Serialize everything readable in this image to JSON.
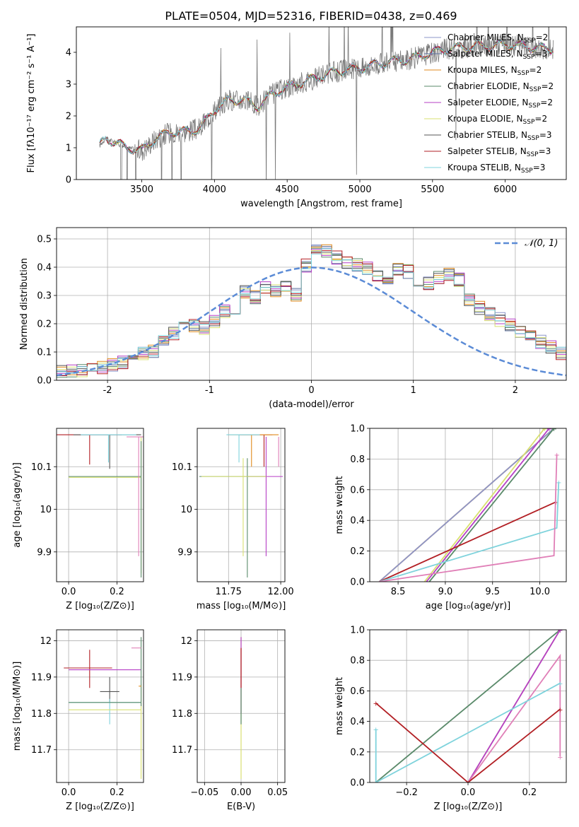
{
  "figure_title": "PLATE=0504, MJD=52316, FIBERID=0438, z=0.469",
  "colors": {
    "Chabrier MILES": "#8c95c9",
    "Salpeter MILES": "#5b6f9e",
    "Kroupa MILES": "#e08a1c",
    "Chabrier ELODIE": "#5a8a6a",
    "Salpeter ELODIE": "#b63fc6",
    "Kroupa ELODIE": "#d8e070",
    "Chabrier STELIB": "#555555",
    "Salpeter STELIB": "#b21f24",
    "Kroupa STELIB": "#7fd3dc",
    "normal": "#5b8bd6",
    "observed": "#7a7a7a",
    "extra_pink": "#e07fb7",
    "extra_grey": "#505050"
  },
  "legend_spectrum": [
    {
      "label": "Chabrier MILES, N",
      "sub": "SSP",
      "suffix": "=2"
    },
    {
      "label": "Salpeter MILES, N",
      "sub": "SSP",
      "suffix": "=3"
    },
    {
      "label": "Kroupa MILES, N",
      "sub": "SSP",
      "suffix": "=2"
    },
    {
      "label": "Chabrier ELODIE, N",
      "sub": "SSP",
      "suffix": "=2"
    },
    {
      "label": "Salpeter ELODIE, N",
      "sub": "SSP",
      "suffix": "=2"
    },
    {
      "label": "Kroupa ELODIE, N",
      "sub": "SSP",
      "suffix": "=2"
    },
    {
      "label": "Chabrier STELIB, N",
      "sub": "SSP",
      "suffix": "=3"
    },
    {
      "label": "Salpeter STELIB, N",
      "sub": "SSP",
      "suffix": "=3"
    },
    {
      "label": "Kroupa STELIB, N",
      "sub": "SSP",
      "suffix": "=3"
    }
  ],
  "chart_data": [
    {
      "id": "spectrum",
      "type": "line",
      "xlabel": "wavelength [Angstrom, rest frame]",
      "ylabel": "Flux [fλ10⁻¹⁷ erg cm⁻² s⁻¹ A⁻¹]",
      "xlim": [
        3050,
        6420
      ],
      "ylim": [
        0,
        4.8
      ],
      "xticks": [
        3500,
        4000,
        4500,
        5000,
        5500,
        6000
      ],
      "yticks": [
        0,
        1,
        2,
        3,
        4
      ],
      "continuum": {
        "x": [
          3200,
          3250,
          3300,
          3400,
          3500,
          3600,
          3700,
          3800,
          3900,
          4000,
          4100,
          4200,
          4300,
          4400,
          4500,
          4600,
          4700,
          4800,
          4900,
          5000,
          5100,
          5200,
          5300,
          5400,
          5500,
          5600,
          5700,
          5800,
          5900,
          6000,
          6100,
          6200,
          6300
        ],
        "y": [
          1.0,
          1.3,
          1.2,
          1.0,
          0.9,
          1.3,
          1.5,
          1.5,
          1.6,
          2.2,
          2.5,
          2.5,
          2.3,
          2.7,
          2.9,
          3.05,
          3.2,
          3.35,
          3.45,
          3.5,
          3.6,
          3.7,
          3.75,
          3.85,
          4.0,
          4.1,
          4.15,
          4.2,
          4.2,
          4.25,
          4.2,
          4.15,
          4.1
        ]
      }
    },
    {
      "id": "residuals",
      "type": "histogram",
      "xlabel": "(data-model)/error",
      "ylabel": "Normed distribution",
      "xlim": [
        -2.5,
        2.5
      ],
      "ylim": [
        0,
        0.54
      ],
      "xticks": [
        -2,
        -1,
        0,
        1,
        2
      ],
      "yticks": [
        0.0,
        0.1,
        0.2,
        0.3,
        0.4,
        0.5
      ],
      "legend": "𝒩(0, 1)",
      "bin_edges_start": -2.5,
      "bin_width": 0.1,
      "histogram_values": [
        0.02,
        0.02,
        0.02,
        0.03,
        0.03,
        0.04,
        0.05,
        0.06,
        0.08,
        0.09,
        0.12,
        0.15,
        0.17,
        0.18,
        0.17,
        0.19,
        0.23,
        0.24,
        0.3,
        0.28,
        0.31,
        0.3,
        0.32,
        0.29,
        0.39,
        0.45,
        0.44,
        0.42,
        0.4,
        0.39,
        0.38,
        0.36,
        0.35,
        0.38,
        0.37,
        0.34,
        0.33,
        0.35,
        0.36,
        0.34,
        0.27,
        0.24,
        0.22,
        0.2,
        0.18,
        0.16,
        0.14,
        0.12,
        0.1,
        0.08
      ]
    },
    {
      "id": "age_vs_Z",
      "type": "scatter",
      "xlabel": "Z [log₁₀(Z/Z⊙)]",
      "ylabel": "age [log₁₀(age/yr)]",
      "xlim": [
        -0.05,
        0.31
      ],
      "ylim": [
        9.83,
        10.19
      ],
      "xticks": [
        0.0,
        0.2
      ],
      "yticks": [
        9.9,
        10.0,
        10.1
      ]
    },
    {
      "id": "age_vs_mass",
      "type": "scatter",
      "xlabel": "mass [log₁₀(M/M⊙)]",
      "ylabel": "",
      "xlim": [
        11.6,
        12.02
      ],
      "ylim": [
        9.83,
        10.19
      ],
      "xticks": [
        11.75,
        12.0
      ],
      "yticks": [
        9.9,
        10.0,
        10.1
      ]
    },
    {
      "id": "weight_vs_age",
      "type": "line",
      "xlabel": "age [log₁₀(age/yr)]",
      "ylabel": "mass weight",
      "xlim": [
        8.2,
        10.28
      ],
      "ylim": [
        0,
        1.0
      ],
      "xticks": [
        8.5,
        9.0,
        9.5,
        10.0
      ],
      "yticks": [
        0.0,
        0.2,
        0.4,
        0.6,
        0.8,
        1.0
      ]
    },
    {
      "id": "mass_vs_Z",
      "type": "scatter",
      "xlabel": "Z [log₁₀(Z/Z⊙)]",
      "ylabel": "mass [log₁₀(M/M⊙)]",
      "xlim": [
        -0.05,
        0.31
      ],
      "ylim": [
        11.61,
        12.03
      ],
      "xticks": [
        0.0,
        0.2
      ],
      "yticks": [
        11.7,
        11.8,
        11.9,
        12.0
      ]
    },
    {
      "id": "mass_vs_ebv",
      "type": "scatter",
      "xlabel": "E(B-V)",
      "ylabel": "",
      "xlim": [
        -0.06,
        0.06
      ],
      "ylim": [
        11.61,
        12.03
      ],
      "xticks": [
        -0.05,
        0.0,
        0.05
      ],
      "yticks": [
        11.7,
        11.8,
        11.9,
        12.0
      ]
    },
    {
      "id": "weight_vs_Z",
      "type": "line",
      "xlabel": "Z [log₁₀(Z/Z⊙)]",
      "ylabel": "mass weight",
      "xlim": [
        -0.32,
        0.32
      ],
      "ylim": [
        0,
        1.0
      ],
      "xticks": [
        -0.2,
        0.0,
        0.2
      ],
      "yticks": [
        0.0,
        0.2,
        0.4,
        0.6,
        0.8,
        1.0
      ]
    }
  ]
}
